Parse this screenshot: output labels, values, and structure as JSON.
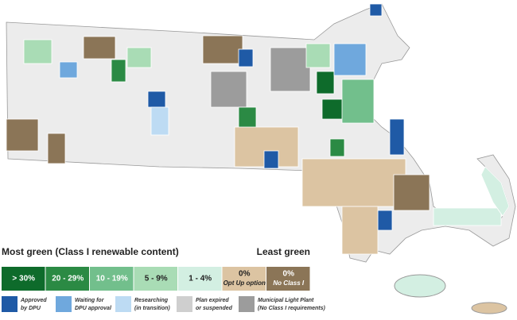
{
  "legend": {
    "title_left": "Most green (Class I renewable content)",
    "title_right": "Least green",
    "scale": [
      {
        "label": "> 30%",
        "color": "#0e6b2b"
      },
      {
        "label": "20 - 29%",
        "color": "#2b8a44"
      },
      {
        "label": "10 - 19%",
        "color": "#72bf8c"
      },
      {
        "label": "5 - 9%",
        "color": "#a9dcb5"
      },
      {
        "label": "1 - 4%",
        "color": "#d3efe2"
      },
      {
        "label": "0%",
        "sublabel": "Opt Up option",
        "color": "#dcc4a2"
      },
      {
        "label": "0%",
        "sublabel": "No Class I",
        "color": "#8b7557"
      }
    ],
    "status": [
      {
        "lines": [
          "Approved",
          "by DPU"
        ],
        "color": "#1f5aa6"
      },
      {
        "lines": [
          "Waiting for",
          "DPU approval"
        ],
        "color": "#6fa8dd"
      },
      {
        "lines": [
          "Researching",
          "(in transition)"
        ],
        "color": "#bddbf3"
      },
      {
        "lines": [
          "Plan expired",
          "or suspended"
        ],
        "color": "#cfcfcf"
      },
      {
        "lines": [
          "Municipal Light Plant",
          "(No Class I requirements)"
        ],
        "color": "#9c9c9c"
      }
    ]
  }
}
